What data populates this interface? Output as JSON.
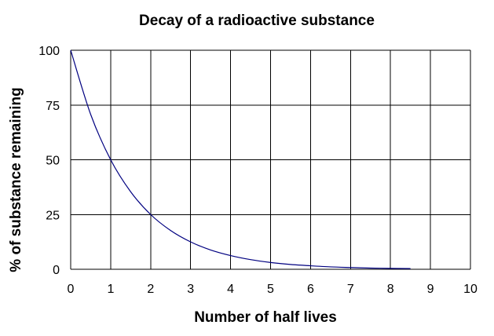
{
  "chart_data": {
    "type": "line",
    "title": "Decay of a radioactive substance",
    "xlabel": "Number of half lives",
    "ylabel": "% of substance remaining",
    "xlim": [
      0,
      10
    ],
    "ylim": [
      0,
      100
    ],
    "x_ticks": [
      "0",
      "1",
      "2",
      "3",
      "4",
      "5",
      "6",
      "7",
      "8",
      "9",
      "10"
    ],
    "y_ticks": [
      "0",
      "25",
      "50",
      "75",
      "100"
    ],
    "grid": true,
    "legend": "none",
    "series": [
      {
        "x": [
          0,
          0.5,
          1,
          1.5,
          2,
          2.5,
          3,
          3.5,
          4,
          4.5,
          5,
          5.5,
          6,
          6.5,
          7,
          7.5,
          8,
          8.5
        ],
        "values": [
          100,
          70.7,
          50,
          35.4,
          25,
          17.7,
          12.5,
          8.8,
          6.25,
          4.4,
          3.1,
          2.2,
          1.6,
          1.1,
          0.8,
          0.55,
          0.4,
          0.3
        ],
        "color": "#000080"
      }
    ]
  }
}
